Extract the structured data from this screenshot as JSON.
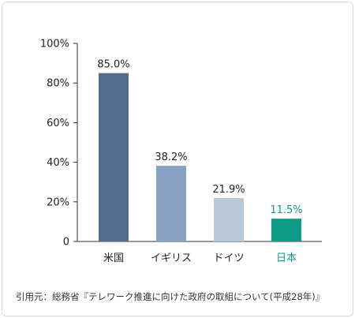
{
  "chart_data": {
    "type": "bar",
    "categories": [
      "米国",
      "イギリス",
      "ドイツ",
      "日本"
    ],
    "values": [
      85.0,
      38.2,
      21.9,
      11.5
    ],
    "value_labels": [
      "85.0%",
      "38.2%",
      "21.9%",
      "11.5%"
    ],
    "bar_colors": [
      "#526e8e",
      "#8aa2c2",
      "#b9c9dc",
      "#0d9a86"
    ],
    "label_colors": [
      "#222222",
      "#222222",
      "#222222",
      "#0d9a86"
    ],
    "yticks": [
      "0",
      "20%",
      "40%",
      "60%",
      "80%",
      "100%"
    ],
    "ylim": [
      0,
      100
    ],
    "grid": false,
    "legend": "none"
  },
  "source": "引用元：総務省『テレワーク推進に向けた政府の取組について(平成28年)』"
}
